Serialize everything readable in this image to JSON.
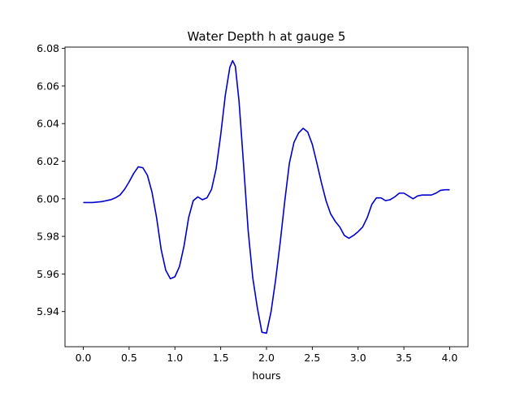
{
  "chart_data": {
    "type": "line",
    "title": "Water Depth h at gauge 5",
    "xlabel": "hours",
    "ylabel": "",
    "xlim": [
      -0.2,
      4.2
    ],
    "ylim": [
      5.9213,
      6.0807
    ],
    "xticks": [
      0.0,
      0.5,
      1.0,
      1.5,
      2.0,
      2.5,
      3.0,
      3.5,
      4.0
    ],
    "xtick_labels": [
      "0.0",
      "0.5",
      "1.0",
      "1.5",
      "2.0",
      "2.5",
      "3.0",
      "3.5",
      "4.0"
    ],
    "yticks": [
      5.94,
      5.96,
      5.98,
      6.0,
      6.02,
      6.04,
      6.06,
      6.08
    ],
    "ytick_labels": [
      "5.94",
      "5.96",
      "5.98",
      "6.00",
      "6.02",
      "6.04",
      "6.06",
      "6.08"
    ],
    "grid": false,
    "legend": "none",
    "series": [
      {
        "color": "#0000cc",
        "x": [
          0.0,
          0.1,
          0.2,
          0.3,
          0.35,
          0.4,
          0.45,
          0.5,
          0.55,
          0.6,
          0.65,
          0.7,
          0.75,
          0.8,
          0.85,
          0.9,
          0.95,
          1.0,
          1.05,
          1.1,
          1.15,
          1.2,
          1.25,
          1.3,
          1.35,
          1.4,
          1.45,
          1.5,
          1.55,
          1.6,
          1.63,
          1.66,
          1.7,
          1.75,
          1.8,
          1.85,
          1.9,
          1.95,
          2.0,
          2.05,
          2.1,
          2.15,
          2.2,
          2.25,
          2.3,
          2.35,
          2.4,
          2.45,
          2.5,
          2.55,
          2.6,
          2.65,
          2.7,
          2.75,
          2.8,
          2.85,
          2.9,
          2.95,
          3.0,
          3.05,
          3.1,
          3.15,
          3.2,
          3.25,
          3.3,
          3.35,
          3.4,
          3.45,
          3.5,
          3.55,
          3.6,
          3.65,
          3.7,
          3.75,
          3.8,
          3.85,
          3.9,
          3.95,
          4.0
        ],
        "values": [
          5.998,
          5.998,
          5.9985,
          5.9995,
          6.0005,
          6.002,
          6.005,
          6.009,
          6.0135,
          6.017,
          6.0165,
          6.0125,
          6.0035,
          5.99,
          5.973,
          5.962,
          5.9575,
          5.9585,
          5.964,
          5.975,
          5.99,
          5.999,
          6.001,
          5.9995,
          6.0005,
          6.005,
          6.016,
          6.034,
          6.055,
          6.07,
          6.0735,
          6.0705,
          6.052,
          6.018,
          5.983,
          5.958,
          5.942,
          5.929,
          5.9285,
          5.94,
          5.957,
          5.977,
          5.999,
          6.019,
          6.03,
          6.035,
          6.0375,
          6.0355,
          6.029,
          6.019,
          6.0085,
          5.999,
          5.992,
          5.988,
          5.985,
          5.9805,
          5.979,
          5.9805,
          5.9825,
          5.985,
          5.99,
          5.997,
          6.0005,
          6.0005,
          5.999,
          5.9995,
          6.001,
          6.003,
          6.003,
          6.0015,
          6.0,
          6.0015,
          6.002,
          6.002,
          6.002,
          6.003,
          6.0045,
          6.0048,
          6.0048
        ]
      }
    ]
  }
}
